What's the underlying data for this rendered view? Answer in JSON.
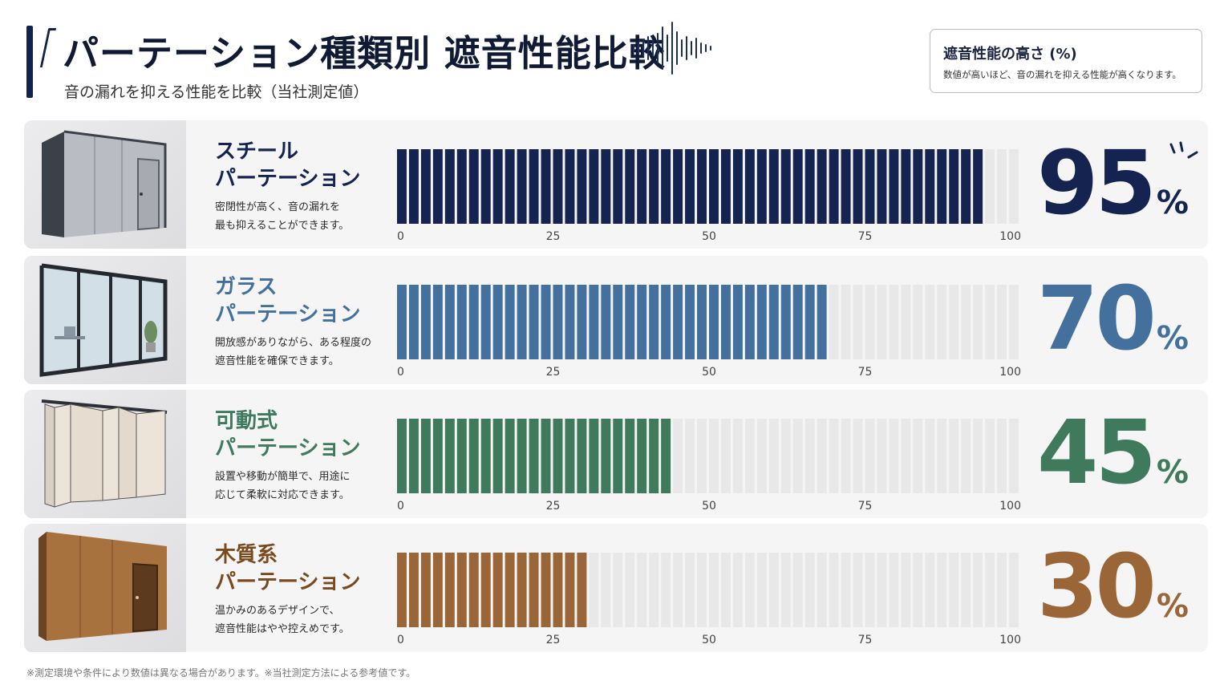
{
  "header": {
    "title": "パーテーション種類別 遮音性能比較",
    "subtitle": "音の漏れを抑える性能を比較（当社測定値）"
  },
  "legend": {
    "title": "遮音性能の高さ (%)",
    "description": "数値が高いほど、音の漏れを抑える性能が高くなります。"
  },
  "rows": [
    {
      "name1": "スチール",
      "name2": "パーテーション",
      "desc1": "密閉性が高く、音の漏れを",
      "desc2": "最も抑えることができます。",
      "pct": "95",
      "pct_sign": "%",
      "icon": "steel-partition-icon"
    },
    {
      "name1": "ガラス",
      "name2": "パーテーション",
      "desc1": "開放感がありながら、ある程度の",
      "desc2": "遮音性能を確保できます。",
      "pct": "70",
      "pct_sign": "%",
      "icon": "glass-partition-icon"
    },
    {
      "name1": "可動式",
      "name2": "パーテーション",
      "desc1": "設置や移動が簡単で、用途に",
      "desc2": "応じて柔軟に対応できます。",
      "pct": "45",
      "pct_sign": "%",
      "icon": "movable-partition-icon"
    },
    {
      "name1": "木質系",
      "name2": "パーテーション",
      "desc1": "温かみのあるデザインで、",
      "desc2": "遮音性能はやや控えめです。",
      "pct": "30",
      "pct_sign": "%",
      "icon": "wood-partition-icon"
    }
  ],
  "footnote": "※測定環境や条件により数値は異なる場合があります。※当社測定方法による参考値です。",
  "chart_data": {
    "type": "bar",
    "orientation": "horizontal",
    "title": "パーテーション種類別 遮音性能比較",
    "categories": [
      "スチールパーテーション",
      "ガラスパーテーション",
      "可動式パーテーション",
      "木質系パーテーション"
    ],
    "series": [
      {
        "name": "遮音性能の高さ (%)",
        "values": [
          95,
          70,
          45,
          30
        ]
      }
    ],
    "xlim": [
      0,
      100
    ],
    "ticks": [
      "0",
      "25",
      "50",
      "75",
      "100"
    ],
    "colors": [
      "#14234f",
      "#43709c",
      "#3f7a5c",
      "#9a6638"
    ],
    "empty_color": "#e8e8e9",
    "grid": false,
    "legend": "top-right"
  }
}
